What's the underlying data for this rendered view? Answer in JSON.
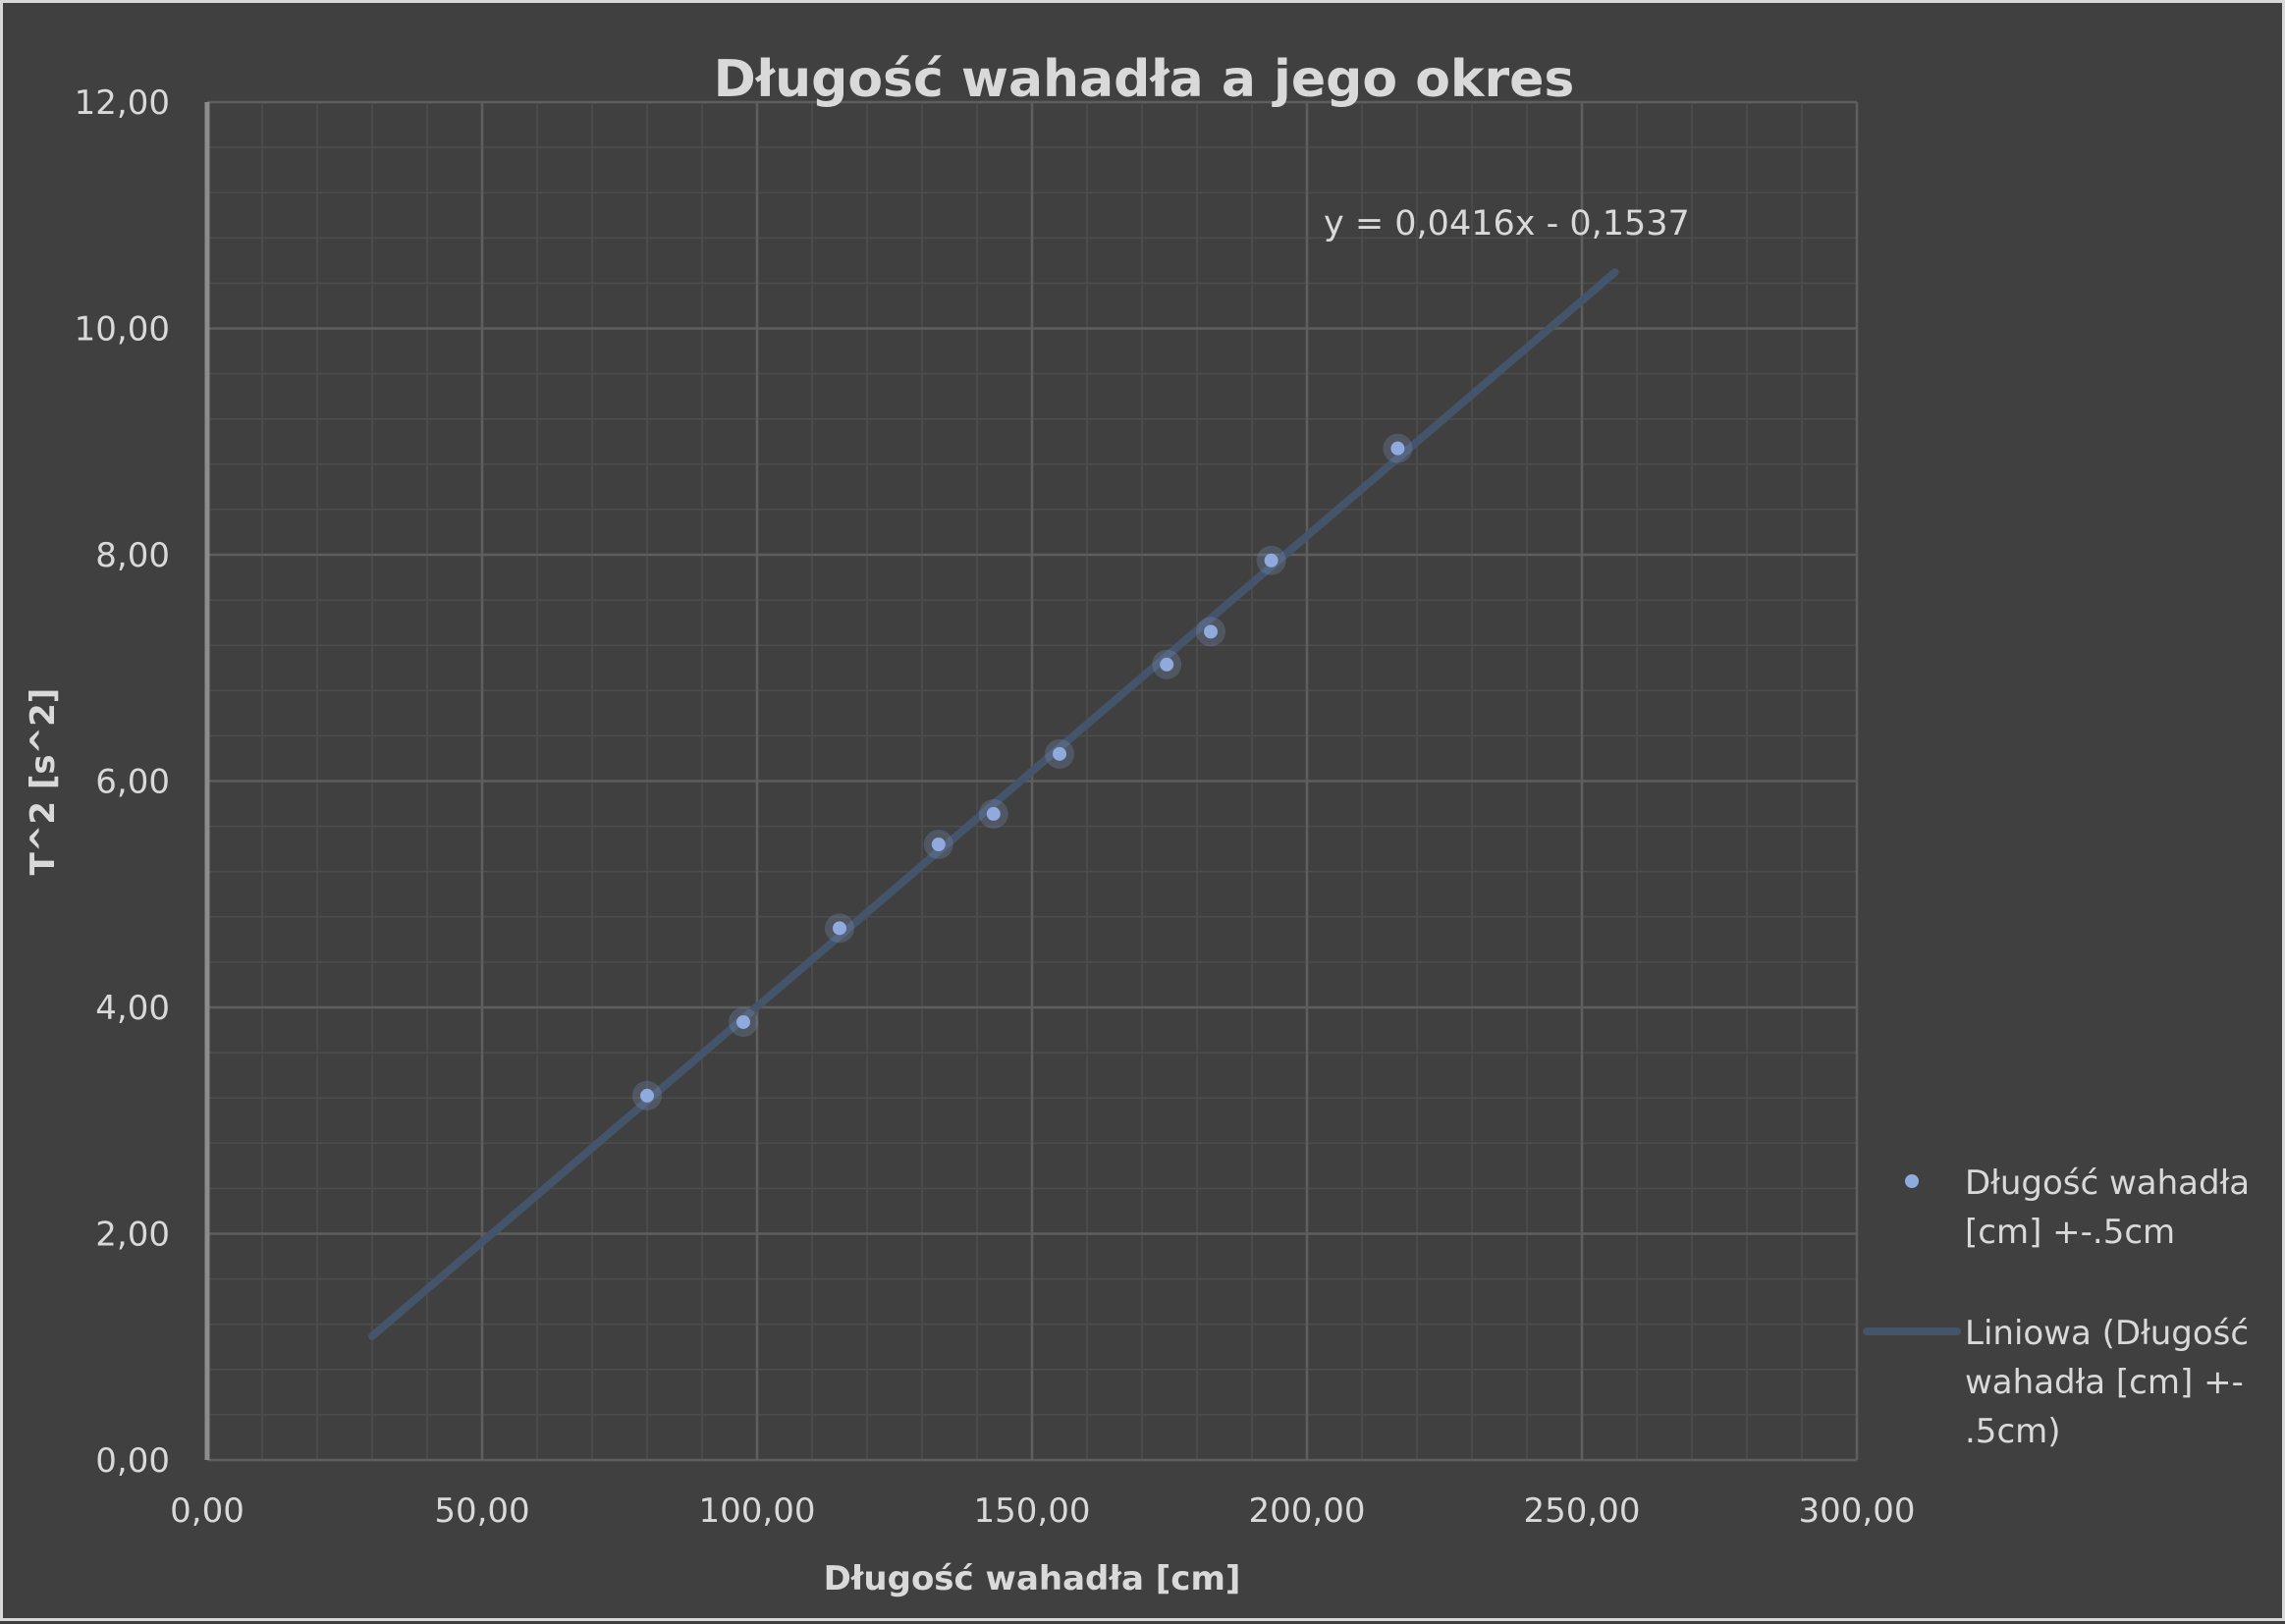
{
  "chart_data": {
    "type": "scatter",
    "title": "Długość wahadła a jego okres",
    "xlabel": "Długość wahadła [cm]",
    "ylabel": "T^2 [s^2]",
    "xlim": [
      0,
      300
    ],
    "ylim": [
      0,
      12
    ],
    "x_ticks": [
      "0,00",
      "50,00",
      "100,00",
      "150,00",
      "200,00",
      "250,00",
      "300,00"
    ],
    "y_ticks": [
      "0,00",
      "2,00",
      "4,00",
      "6,00",
      "8,00",
      "10,00",
      "12,00"
    ],
    "grid": true,
    "legend_position": "right",
    "series": [
      {
        "name": "Długość wahadła [cm] +-.5cm",
        "legend_lines": [
          "Długość wahadła",
          "[cm] +-.5cm"
        ],
        "color": "#8faadc",
        "points": [
          {
            "x": 80.0,
            "y": 3.22
          },
          {
            "x": 97.5,
            "y": 3.87
          },
          {
            "x": 115.0,
            "y": 4.7
          },
          {
            "x": 133.0,
            "y": 5.44
          },
          {
            "x": 143.0,
            "y": 5.71
          },
          {
            "x": 155.0,
            "y": 6.24
          },
          {
            "x": 174.5,
            "y": 7.03
          },
          {
            "x": 182.5,
            "y": 7.32
          },
          {
            "x": 193.5,
            "y": 7.95
          },
          {
            "x": 216.5,
            "y": 8.94
          }
        ]
      }
    ],
    "trendline": {
      "name": "Liniowa (Długość wahadła [cm] +-.5cm)",
      "legend_lines": [
        "Liniowa (Długość",
        "wahadła [cm] +-",
        ".5cm)"
      ],
      "color": "#44546a",
      "slope": 0.0416,
      "intercept": -0.1537,
      "x_range": [
        30,
        256
      ],
      "equation": "y = 0,0416x - 0,1537"
    }
  }
}
